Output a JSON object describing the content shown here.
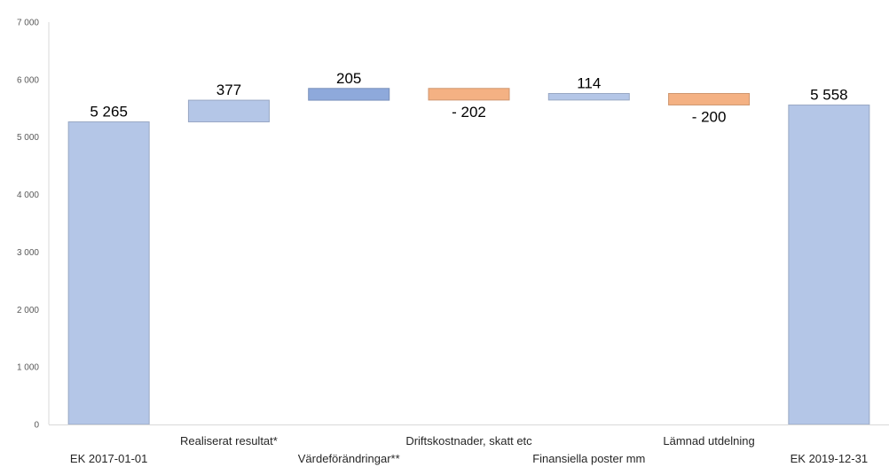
{
  "chart_data": {
    "type": "bar",
    "subtype": "waterfall",
    "title": "",
    "xlabel": "",
    "ylabel": "",
    "ylim": [
      0,
      7000
    ],
    "yticks": [
      0,
      1000,
      2000,
      3000,
      4000,
      5000,
      6000,
      7000
    ],
    "ytick_labels": [
      "0",
      "1 000",
      "2 000",
      "3 000",
      "4 000",
      "5 000",
      "6 000",
      "7 000"
    ],
    "grid": false,
    "legend": "none",
    "categories": [
      "EK 2017-01-01",
      "Realiserat resultat*",
      "Värdeförändringar**",
      "Driftskostnader, skatt etc",
      "Finansiella poster mm",
      "Lämnad utdelning",
      "EK 2019-12-31"
    ],
    "bars": [
      {
        "category": "EK 2017-01-01",
        "kind": "total",
        "start": 0,
        "end": 5265,
        "value": 5265,
        "label": "5 265",
        "color": "#b4c6e7"
      },
      {
        "category": "Realiserat resultat*",
        "kind": "increase",
        "start": 5265,
        "end": 5642,
        "value": 377,
        "label": "377",
        "color": "#b4c6e7"
      },
      {
        "category": "Värdeförändringar**",
        "kind": "increase",
        "start": 5642,
        "end": 5847,
        "value": 205,
        "label": "205",
        "color": "#8ea9db"
      },
      {
        "category": "Driftskostnader, skatt etc",
        "kind": "decrease",
        "start": 5847,
        "end": 5645,
        "value": -202,
        "label": "- 202",
        "color": "#f4b183"
      },
      {
        "category": "Finansiella poster mm",
        "kind": "increase",
        "start": 5645,
        "end": 5759,
        "value": 114,
        "label": "114",
        "color": "#b4c6e7"
      },
      {
        "category": "Lämnad utdelning",
        "kind": "decrease",
        "start": 5759,
        "end": 5559,
        "value": -200,
        "label": "- 200",
        "color": "#f4b183"
      },
      {
        "category": "EK 2019-12-31",
        "kind": "total",
        "start": 0,
        "end": 5558,
        "value": 5558,
        "label": "5 558",
        "color": "#b4c6e7"
      }
    ],
    "colors": {
      "increase": "#b4c6e7",
      "increase_strong": "#8ea9db",
      "decrease": "#f4b183",
      "axis": "#d9d9d9"
    }
  }
}
